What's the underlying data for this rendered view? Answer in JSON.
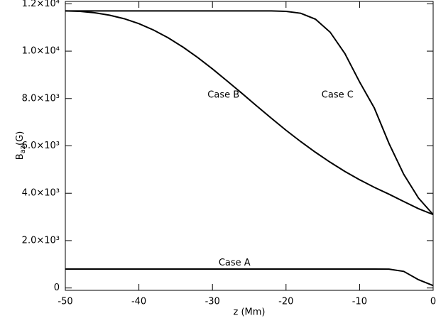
{
  "chart_data": {
    "type": "line",
    "xlabel": "z (Mm)",
    "ylabel": {
      "base": "B",
      "subscript": "az",
      "unit": "(G)"
    },
    "x": [
      -50,
      -48,
      -46,
      -44,
      -42,
      -40,
      -38,
      -36,
      -34,
      -32,
      -30,
      -28,
      -26,
      -24,
      -22,
      -20,
      -18,
      -16,
      -14,
      -12,
      -10,
      -8,
      -6,
      -4,
      -2,
      0
    ],
    "series": [
      {
        "name": "Case A",
        "color": "#000000",
        "values": [
          800,
          800,
          800,
          800,
          800,
          800,
          800,
          800,
          800,
          800,
          800,
          800,
          800,
          800,
          800,
          800,
          800,
          800,
          800,
          800,
          800,
          800,
          795,
          700,
          350,
          100
        ]
      },
      {
        "name": "Case B",
        "color": "#000000",
        "values": [
          11700,
          11680,
          11620,
          11520,
          11370,
          11160,
          10890,
          10560,
          10170,
          9730,
          9250,
          8740,
          8220,
          7690,
          7170,
          6660,
          6180,
          5730,
          5310,
          4920,
          4570,
          4250,
          3960,
          3650,
          3350,
          3100
        ]
      },
      {
        "name": "Case C",
        "color": "#000000",
        "values": [
          11700,
          11700,
          11700,
          11700,
          11700,
          11700,
          11700,
          11700,
          11700,
          11700,
          11700,
          11700,
          11700,
          11700,
          11700,
          11680,
          11600,
          11350,
          10800,
          9900,
          8700,
          7600,
          6100,
          4800,
          3800,
          3100
        ]
      }
    ],
    "xlim": [
      -50,
      0
    ],
    "ylim": [
      -100,
      12100
    ],
    "xticks": [
      -50,
      -40,
      -30,
      -20,
      -10,
      0
    ],
    "yticks": [
      0,
      {
        "value": 2000,
        "label": "2.0×10³"
      },
      {
        "value": 4000,
        "label": "4.0×10³"
      },
      {
        "value": 6000,
        "label": "6.0×10³"
      },
      {
        "value": 8000,
        "label": "8.0×10³"
      },
      {
        "value": 10000,
        "label": "1.0×10⁴"
      },
      {
        "value": 12000,
        "label": "1.2×10⁴"
      }
    ],
    "grid": false
  }
}
